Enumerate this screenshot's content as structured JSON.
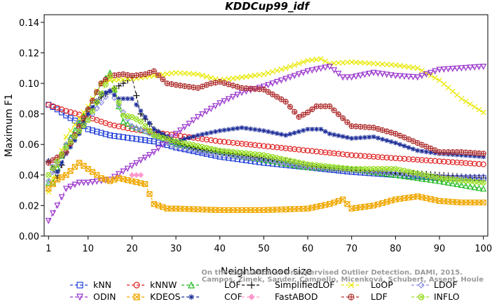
{
  "chart_data": {
    "type": "line",
    "title": "KDDCup99_idf",
    "xlabel": "Neighborhood size",
    "ylabel": "Maximum F1",
    "xlim": [
      0,
      101
    ],
    "ylim": [
      0,
      0.145
    ],
    "xticks": [
      1,
      10,
      20,
      30,
      40,
      50,
      60,
      70,
      80,
      90,
      100
    ],
    "yticks": [
      0.0,
      0.02,
      0.04,
      0.06,
      0.08,
      0.1,
      0.12,
      0.14
    ],
    "ytick_labels": [
      "0.00",
      "0.02",
      "0.04",
      "0.06",
      "0.08",
      "0.10",
      "0.12",
      "0.14"
    ],
    "grid": false,
    "legend_position": "bottom",
    "watermark": [
      "Campos, Zimek, Sander, Campello, Micenková, Schubert, Assent, Houle",
      "On the Evaluation of Unsupervised Outlier Detection. DAMI, 2015."
    ],
    "series": [
      {
        "name": "kNN",
        "color": "#1f3fd8",
        "marker": "square",
        "x": [
          1,
          3,
          5,
          8,
          10,
          15,
          20,
          25,
          30,
          40,
          50,
          60,
          70,
          80,
          90,
          100
        ],
        "y": [
          0.086,
          0.083,
          0.079,
          0.074,
          0.07,
          0.066,
          0.064,
          0.062,
          0.058,
          0.052,
          0.048,
          0.045,
          0.042,
          0.04,
          0.038,
          0.038
        ]
      },
      {
        "name": "kNNW",
        "color": "#e02020",
        "marker": "circle",
        "x": [
          1,
          5,
          10,
          15,
          20,
          25,
          30,
          40,
          50,
          60,
          70,
          80,
          90,
          100
        ],
        "y": [
          0.086,
          0.082,
          0.078,
          0.073,
          0.07,
          0.068,
          0.066,
          0.062,
          0.059,
          0.056,
          0.053,
          0.051,
          0.049,
          0.047
        ]
      },
      {
        "name": "LOF",
        "color": "#22bb22",
        "marker": "triangle-up",
        "x": [
          1,
          2,
          3,
          5,
          8,
          10,
          13,
          15,
          17,
          18,
          20,
          25,
          30,
          40,
          50,
          60,
          70,
          80,
          90,
          100
        ],
        "y": [
          0.035,
          0.035,
          0.045,
          0.06,
          0.074,
          0.083,
          0.1,
          0.107,
          0.085,
          0.075,
          0.072,
          0.067,
          0.06,
          0.055,
          0.05,
          0.045,
          0.044,
          0.04,
          0.036,
          0.031
        ]
      },
      {
        "name": "SimplifiedLOF",
        "color": "#111111",
        "marker": "plus",
        "x": [
          1,
          3,
          5,
          7,
          10,
          13,
          15,
          18,
          20,
          22,
          25,
          30,
          35,
          40,
          45,
          50,
          55,
          60,
          65,
          70,
          75,
          80,
          85,
          90,
          95,
          100
        ],
        "y": [
          0.049,
          0.038,
          0.055,
          0.066,
          0.08,
          0.091,
          0.095,
          0.1,
          0.104,
          0.08,
          0.07,
          0.061,
          0.057,
          0.055,
          0.053,
          0.051,
          0.049,
          0.046,
          0.044,
          0.043,
          0.042,
          0.041,
          0.041,
          0.04,
          0.039,
          0.038
        ]
      },
      {
        "name": "LoOP",
        "color": "#e8e800",
        "marker": "x",
        "x": [
          1,
          5,
          10,
          13,
          15,
          20,
          25,
          30,
          35,
          40,
          45,
          50,
          55,
          60,
          63,
          65,
          70,
          75,
          80,
          85,
          90,
          95,
          100
        ],
        "y": [
          0.029,
          0.065,
          0.085,
          0.1,
          0.102,
          0.103,
          0.105,
          0.107,
          0.106,
          0.102,
          0.104,
          0.106,
          0.11,
          0.115,
          0.116,
          0.113,
          0.114,
          0.113,
          0.112,
          0.11,
          0.102,
          0.09,
          0.081
        ]
      },
      {
        "name": "LDOF",
        "color": "#8a8ae0",
        "marker": "diamond",
        "x": [
          1,
          5,
          10,
          15,
          20,
          25,
          30,
          40,
          50,
          60,
          70,
          80,
          90,
          100
        ],
        "y": [
          0.036,
          0.06,
          0.076,
          0.095,
          0.072,
          0.066,
          0.058,
          0.053,
          0.05,
          0.045,
          0.043,
          0.041,
          0.039,
          0.039
        ]
      },
      {
        "name": "ODIN",
        "color": "#9933cc",
        "marker": "triangle-down",
        "x": [
          1,
          3,
          5,
          8,
          10,
          15,
          20,
          25,
          30,
          35,
          40,
          45,
          50,
          55,
          60,
          65,
          68,
          70,
          75,
          80,
          85,
          90,
          95,
          100
        ],
        "y": [
          0.01,
          0.02,
          0.031,
          0.035,
          0.035,
          0.037,
          0.046,
          0.055,
          0.067,
          0.078,
          0.087,
          0.094,
          0.098,
          0.103,
          0.108,
          0.111,
          0.104,
          0.104,
          0.107,
          0.105,
          0.104,
          0.109,
          0.11,
          0.111
        ]
      },
      {
        "name": "KDEOS",
        "color": "#f0a800",
        "marker": "square-x",
        "x": [
          1,
          3,
          5,
          8,
          10,
          13,
          15,
          17,
          20,
          23,
          25,
          28,
          30,
          40,
          50,
          60,
          65,
          68,
          70,
          75,
          80,
          85,
          90,
          95,
          100
        ],
        "y": [
          0.031,
          0.037,
          0.04,
          0.048,
          0.044,
          0.038,
          0.036,
          0.038,
          0.036,
          0.034,
          0.021,
          0.018,
          0.018,
          0.017,
          0.017,
          0.018,
          0.021,
          0.024,
          0.018,
          0.02,
          0.024,
          0.026,
          0.023,
          0.022,
          0.022
        ]
      },
      {
        "name": "COF",
        "color": "#1f2f9a",
        "marker": "star",
        "x": [
          1,
          3,
          5,
          8,
          10,
          13,
          15,
          17,
          20,
          22,
          25,
          30,
          35,
          40,
          45,
          50,
          55,
          60,
          63,
          65,
          70,
          75,
          80,
          85,
          90,
          95,
          100
        ],
        "y": [
          0.049,
          0.042,
          0.054,
          0.067,
          0.08,
          0.093,
          0.095,
          0.09,
          0.09,
          0.082,
          0.07,
          0.062,
          0.066,
          0.069,
          0.071,
          0.069,
          0.066,
          0.07,
          0.07,
          0.067,
          0.064,
          0.065,
          0.061,
          0.056,
          0.054,
          0.053,
          0.052
        ]
      },
      {
        "name": "FastABOD",
        "color": "#ff99cc",
        "marker": "diamond-filled",
        "x": [
          20,
          22
        ],
        "y": [
          0.04,
          0.04
        ]
      },
      {
        "name": "LDF",
        "color": "#b03030",
        "marker": "circle-plus",
        "x": [
          1,
          5,
          10,
          13,
          15,
          18,
          20,
          23,
          25,
          28,
          30,
          35,
          38,
          40,
          45,
          50,
          55,
          58,
          60,
          62,
          65,
          70,
          75,
          80,
          85,
          90,
          95,
          100
        ],
        "y": [
          0.048,
          0.055,
          0.083,
          0.1,
          0.105,
          0.106,
          0.105,
          0.106,
          0.108,
          0.1,
          0.099,
          0.097,
          0.1,
          0.101,
          0.097,
          0.096,
          0.088,
          0.078,
          0.081,
          0.085,
          0.085,
          0.072,
          0.071,
          0.067,
          0.061,
          0.055,
          0.055,
          0.054
        ]
      },
      {
        "name": "INFLO",
        "color": "#99dd22",
        "marker": "circle-x",
        "x": [
          1,
          5,
          10,
          15,
          18,
          20,
          22,
          25,
          30,
          40,
          50,
          60,
          70,
          80,
          90,
          100
        ],
        "y": [
          0.04,
          0.058,
          0.076,
          0.105,
          0.079,
          0.078,
          0.075,
          0.066,
          0.062,
          0.056,
          0.053,
          0.047,
          0.044,
          0.044,
          0.038,
          0.035
        ]
      }
    ]
  }
}
